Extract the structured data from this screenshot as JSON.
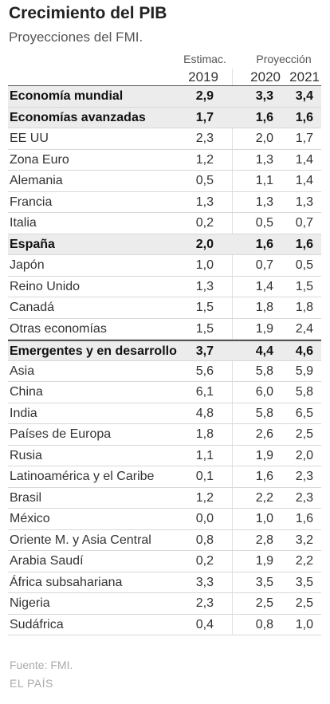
{
  "title": "Crecimiento del PIB",
  "subtitle": "Proyecciones del FMI.",
  "chart_data": {
    "type": "table",
    "title": "Crecimiento del PIB",
    "subtitle": "Proyecciones del FMI.",
    "column_groups": [
      "Estimac.",
      "Proyección"
    ],
    "columns": [
      "2019",
      "2020",
      "2021"
    ],
    "rows": [
      {
        "name": "Economía mundial",
        "v2019": "2,9",
        "v2020": "3,3",
        "v2021": "3,4",
        "bold": true
      },
      {
        "name": "Economías avanzadas",
        "v2019": "1,7",
        "v2020": "1,6",
        "v2021": "1,6",
        "bold": true
      },
      {
        "name": "EE UU",
        "v2019": "2,3",
        "v2020": "2,0",
        "v2021": "1,7",
        "bold": false
      },
      {
        "name": "Zona Euro",
        "v2019": "1,2",
        "v2020": "1,3",
        "v2021": "1,4",
        "bold": false
      },
      {
        "name": "Alemania",
        "v2019": "0,5",
        "v2020": "1,1",
        "v2021": "1,4",
        "bold": false
      },
      {
        "name": "Francia",
        "v2019": "1,3",
        "v2020": "1,3",
        "v2021": "1,3",
        "bold": false
      },
      {
        "name": "Italia",
        "v2019": "0,2",
        "v2020": "0,5",
        "v2021": "0,7",
        "bold": false
      },
      {
        "name": "España",
        "v2019": "2,0",
        "v2020": "1,6",
        "v2021": "1,6",
        "bold": true
      },
      {
        "name": "Japón",
        "v2019": "1,0",
        "v2020": "0,7",
        "v2021": "0,5",
        "bold": false
      },
      {
        "name": "Reino Unido",
        "v2019": "1,3",
        "v2020": "1,4",
        "v2021": "1,5",
        "bold": false
      },
      {
        "name": "Canadá",
        "v2019": "1,5",
        "v2020": "1,8",
        "v2021": "1,8",
        "bold": false
      },
      {
        "name": "Otras economías",
        "v2019": "1,5",
        "v2020": "1,9",
        "v2021": "2,4",
        "bold": false
      },
      {
        "name": "Emergentes y en desarrollo",
        "v2019": "3,7",
        "v2020": "4,4",
        "v2021": "4,6",
        "bold": true
      },
      {
        "name": "Asia",
        "v2019": "5,6",
        "v2020": "5,8",
        "v2021": "5,9",
        "bold": false
      },
      {
        "name": "China",
        "v2019": "6,1",
        "v2020": "6,0",
        "v2021": "5,8",
        "bold": false
      },
      {
        "name": "India",
        "v2019": "4,8",
        "v2020": "5,8",
        "v2021": "6,5",
        "bold": false
      },
      {
        "name": "Países de Europa",
        "v2019": "1,8",
        "v2020": "2,6",
        "v2021": "2,5",
        "bold": false
      },
      {
        "name": "Rusia",
        "v2019": "1,1",
        "v2020": "1,9",
        "v2021": "2,0",
        "bold": false
      },
      {
        "name": "Latinoamérica y el Caribe",
        "v2019": "0,1",
        "v2020": "1,6",
        "v2021": "2,3",
        "bold": false
      },
      {
        "name": "Brasil",
        "v2019": "1,2",
        "v2020": "2,2",
        "v2021": "2,3",
        "bold": false
      },
      {
        "name": "México",
        "v2019": "0,0",
        "v2020": "1,0",
        "v2021": "1,6",
        "bold": false
      },
      {
        "name": "Oriente M. y Asia Central",
        "v2019": "0,8",
        "v2020": "2,8",
        "v2021": "3,2",
        "bold": false
      },
      {
        "name": "Arabia Saudí",
        "v2019": "0,2",
        "v2020": "1,9",
        "v2021": "2,2",
        "bold": false
      },
      {
        "name": "África subsahariana",
        "v2019": "3,3",
        "v2020": "3,5",
        "v2021": "3,5",
        "bold": false
      },
      {
        "name": "Nigeria",
        "v2019": "2,3",
        "v2020": "2,5",
        "v2021": "2,5",
        "bold": false
      },
      {
        "name": "Sudáfrica",
        "v2019": "0,4",
        "v2020": "0,8",
        "v2021": "1,0",
        "bold": false
      }
    ]
  },
  "footer": {
    "source": "Fuente: FMI.",
    "brand": "EL PAÍS"
  }
}
